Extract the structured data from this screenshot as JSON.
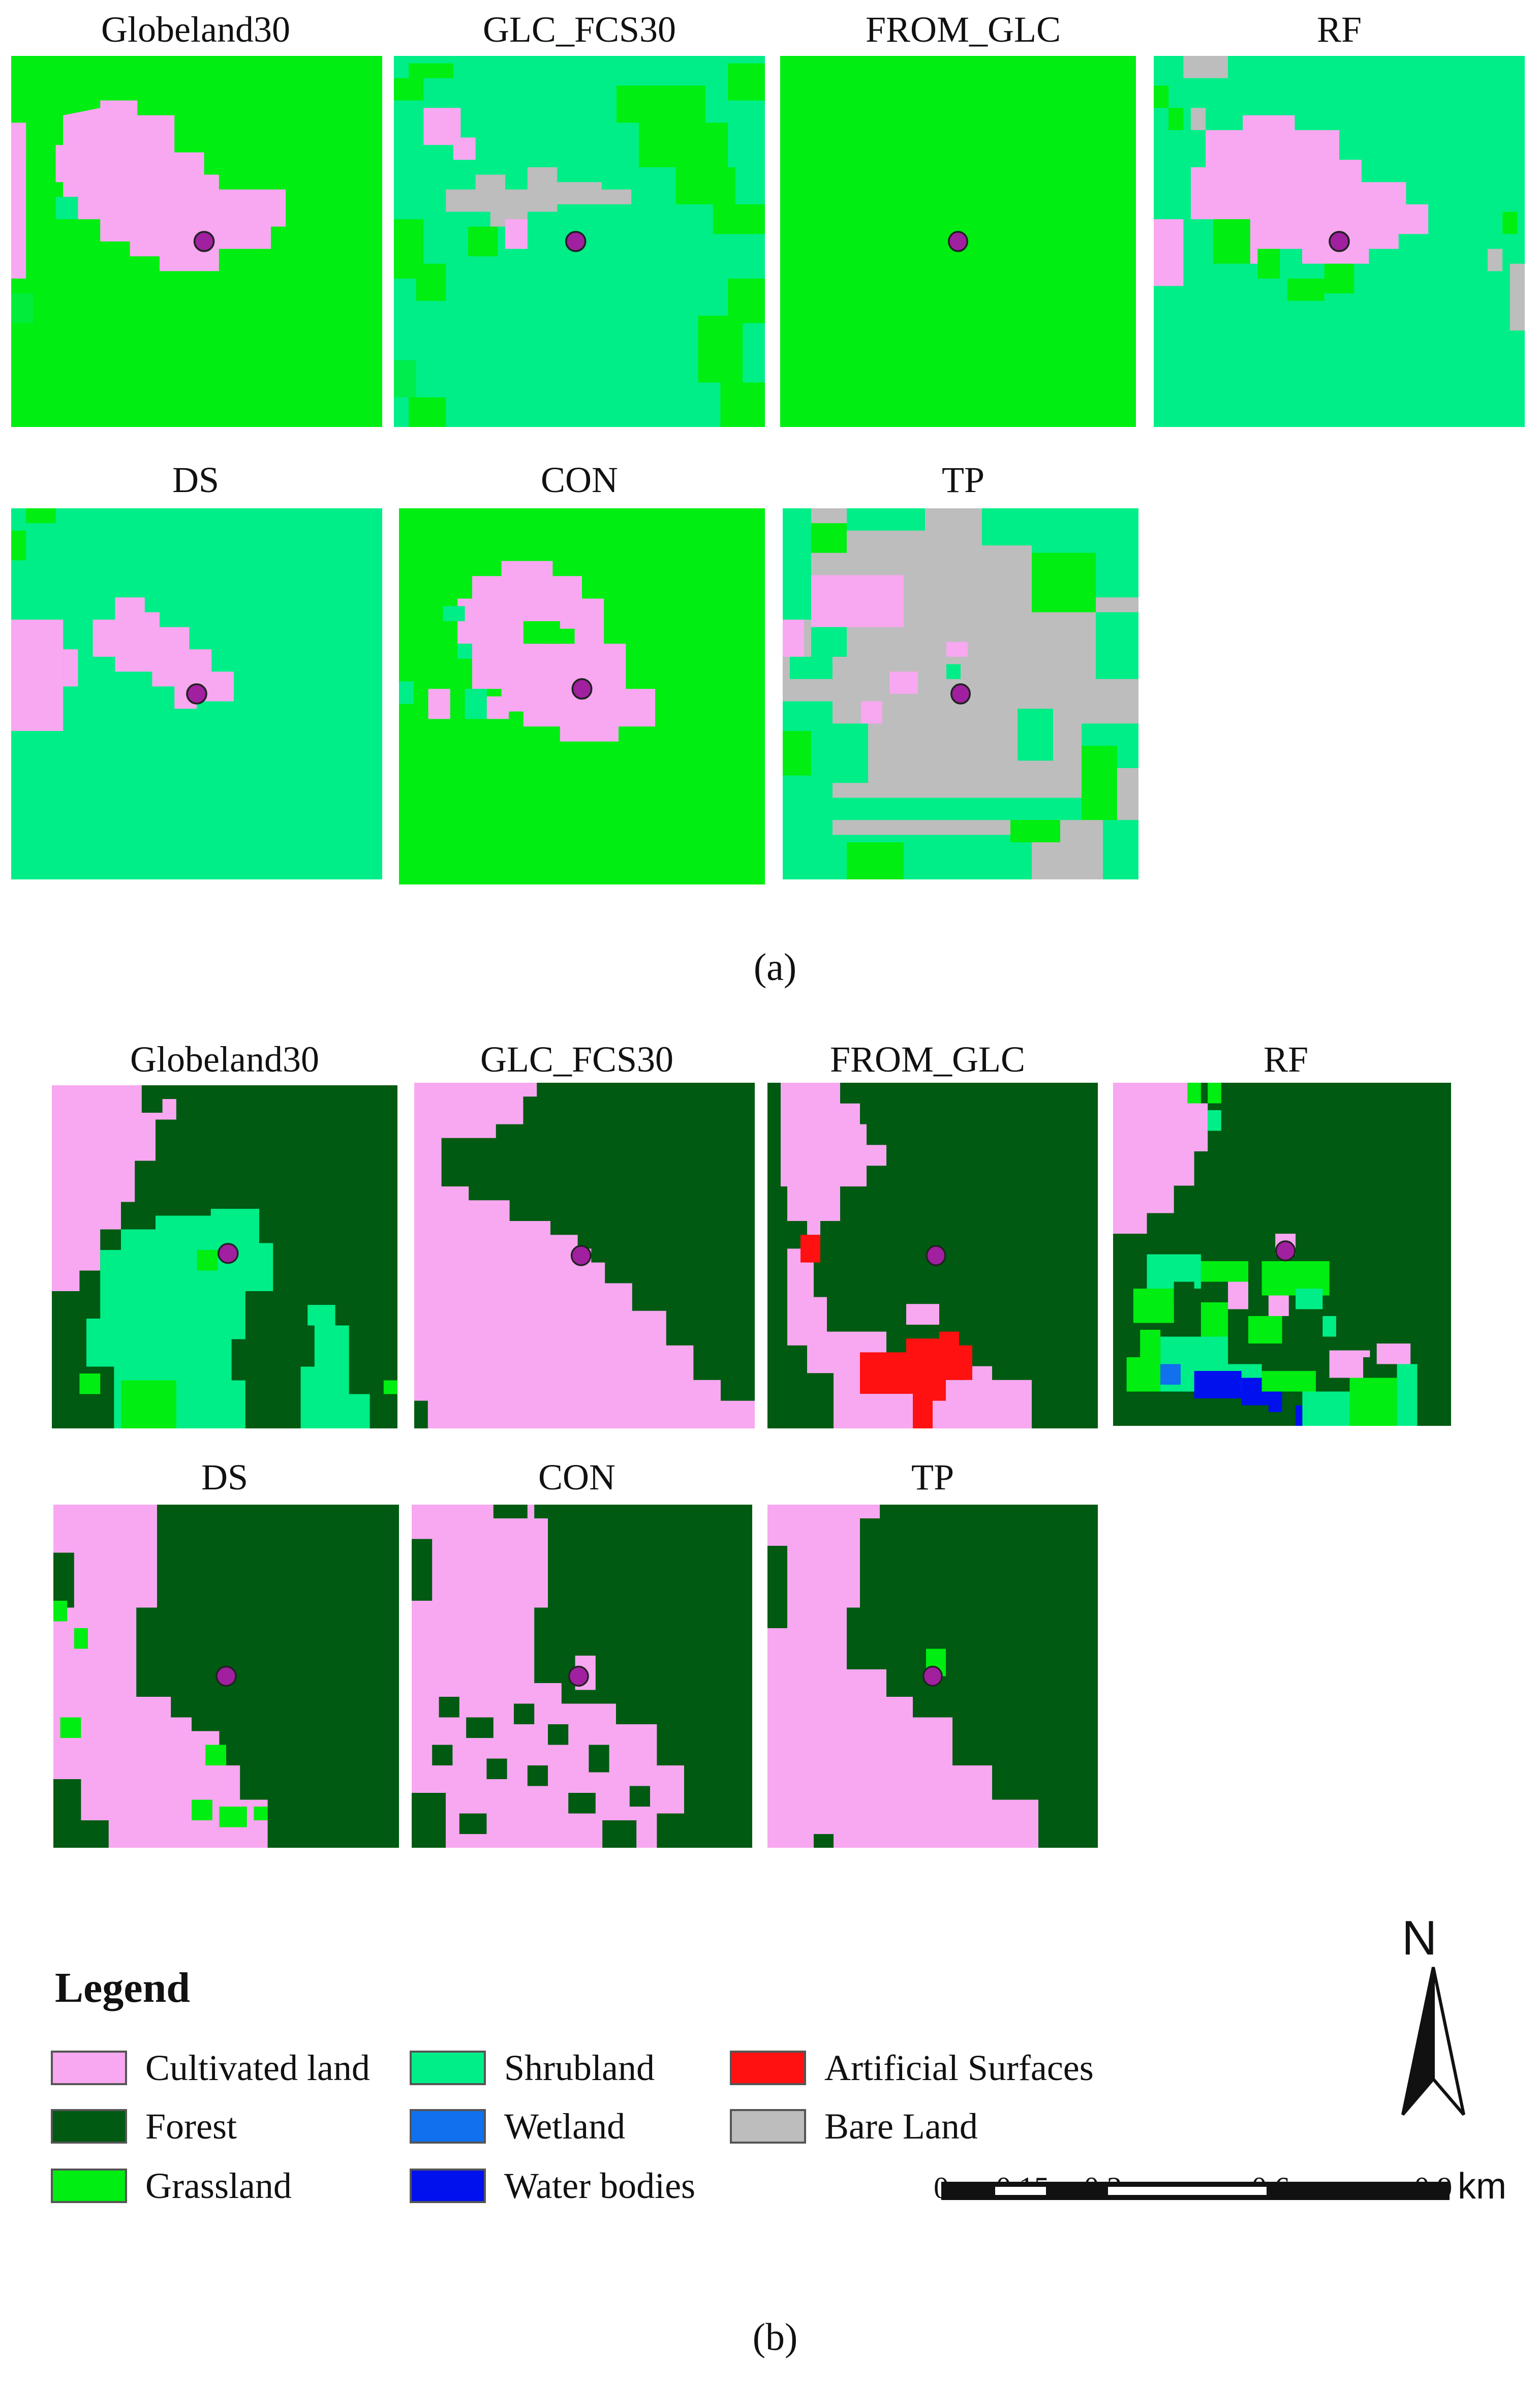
{
  "figure_a": {
    "caption": "(a)",
    "panels": [
      {
        "label": "Globeland30",
        "base": "#00ee11",
        "patch": "#f7a8f0",
        "accent": "#00ee88"
      },
      {
        "label": "GLC_FCS30",
        "base": "#00ee88",
        "patch": "#bdbdbd",
        "accent": "#00ee11"
      },
      {
        "label": "FROM_GLC",
        "base": "#00ee11",
        "patch": null,
        "accent": null
      },
      {
        "label": "RF",
        "base": "#00ee88",
        "patch": "#f7a8f0",
        "accent": "#00ee11"
      },
      {
        "label": "DS",
        "base": "#00ee88",
        "patch": "#f7a8f0",
        "accent": "#00ee88"
      },
      {
        "label": "CON",
        "base": "#00ee11",
        "patch": "#f7a8f0",
        "accent": "#00ee88"
      },
      {
        "label": "TP",
        "base": "#00ee88",
        "patch": "#bdbdbd",
        "accent": "#00ee11"
      }
    ]
  },
  "figure_b": {
    "caption": "(b)",
    "panels": [
      {
        "label": "Globeland30",
        "base": "#005a11",
        "patch": "#f7a8f0",
        "accent": "#00ee88"
      },
      {
        "label": "GLC_FCS30",
        "base": "#005a11",
        "patch": "#f7a8f0",
        "accent": null
      },
      {
        "label": "FROM_GLC",
        "base": "#005a11",
        "patch": "#f7a8f0",
        "accent": "#ff1111"
      },
      {
        "label": "RF",
        "base": "#005a11",
        "patch": "#f7a8f0",
        "accent": "#00ee88"
      },
      {
        "label": "DS",
        "base": "#005a11",
        "patch": "#f7a8f0",
        "accent": "#00ee11"
      },
      {
        "label": "CON",
        "base": "#005a11",
        "patch": "#f7a8f0",
        "accent": null
      },
      {
        "label": "TP",
        "base": "#005a11",
        "patch": "#f7a8f0",
        "accent": "#00ee11"
      }
    ]
  },
  "sample_point_color": "#a020a0",
  "legend": {
    "title": "Legend",
    "items": [
      {
        "label": "Cultivated land",
        "color": "#f7a8f0"
      },
      {
        "label": "Forest",
        "color": "#005a11"
      },
      {
        "label": "Grassland",
        "color": "#00ee11"
      },
      {
        "label": "Shrubland",
        "color": "#00ee88"
      },
      {
        "label": "Wetland",
        "color": "#1070ee"
      },
      {
        "label": "Water bodies",
        "color": "#0011ee"
      },
      {
        "label": "Artificial Surfaces",
        "color": "#ff1111"
      },
      {
        "label": "Bare Land",
        "color": "#bdbdbd"
      }
    ]
  },
  "north_arrow": {
    "letter": "N"
  },
  "scale_bar": {
    "ticks": [
      "0",
      "0.15",
      "0.3",
      "0.6",
      "0.9"
    ],
    "unit": "km"
  }
}
